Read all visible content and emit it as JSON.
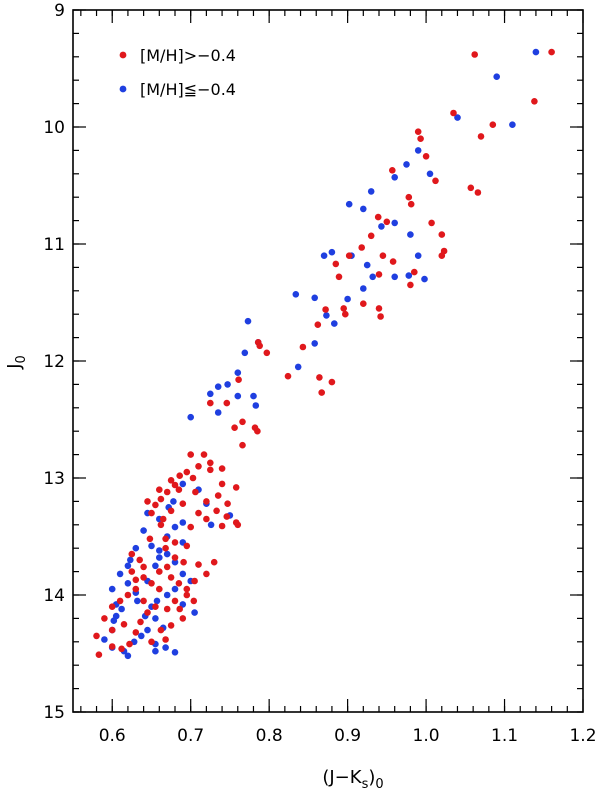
{
  "chart_data": {
    "type": "scatter",
    "xlabel_main": "(J−K",
    "xlabel_sub1": "s",
    "xlabel_close": ")",
    "xlabel_sub2": "0",
    "ylabel_main": "J",
    "ylabel_sub": "0",
    "xlim": [
      0.55,
      1.2
    ],
    "ylim": [
      15,
      9
    ],
    "xticks": [
      0.6,
      0.7,
      0.8,
      0.9,
      1.0,
      1.1,
      1.2
    ],
    "xtick_labels": [
      "0.6",
      "0.7",
      "0.8",
      "0.9",
      "1.0",
      "1.1",
      "1.2"
    ],
    "yticks": [
      9,
      10,
      11,
      12,
      13,
      14,
      15
    ],
    "ytick_labels": [
      "9",
      "10",
      "11",
      "12",
      "13",
      "14",
      "15"
    ],
    "x_minor_step": 0.02,
    "y_minor_step": 0.2,
    "grid": false,
    "legend_position": "top-left",
    "series": [
      {
        "name": "[M/H]>−0.4",
        "color": "#e0181c",
        "points": [
          [
            1.16,
            9.36
          ],
          [
            1.062,
            9.38
          ],
          [
            1.138,
            9.78
          ],
          [
            1.085,
            9.98
          ],
          [
            1.035,
            9.88
          ],
          [
            1.07,
            10.08
          ],
          [
            0.99,
            10.04
          ],
          [
            0.993,
            10.1
          ],
          [
            1.0,
            10.25
          ],
          [
            1.012,
            10.46
          ],
          [
            1.057,
            10.52
          ],
          [
            1.066,
            10.56
          ],
          [
            0.957,
            10.37
          ],
          [
            0.978,
            10.6
          ],
          [
            0.981,
            10.66
          ],
          [
            1.007,
            10.82
          ],
          [
            0.939,
            10.77
          ],
          [
            0.95,
            10.81
          ],
          [
            0.93,
            10.93
          ],
          [
            1.02,
            10.92
          ],
          [
            1.023,
            11.06
          ],
          [
            1.02,
            11.1
          ],
          [
            0.918,
            11.03
          ],
          [
            0.945,
            11.1
          ],
          [
            0.902,
            11.1
          ],
          [
            0.885,
            11.17
          ],
          [
            0.889,
            11.28
          ],
          [
            0.94,
            11.26
          ],
          [
            0.958,
            11.15
          ],
          [
            0.985,
            11.24
          ],
          [
            0.98,
            11.35
          ],
          [
            0.895,
            11.55
          ],
          [
            0.897,
            11.6
          ],
          [
            0.92,
            11.51
          ],
          [
            0.94,
            11.55
          ],
          [
            0.942,
            11.62
          ],
          [
            0.872,
            11.56
          ],
          [
            0.862,
            11.69
          ],
          [
            0.843,
            11.88
          ],
          [
            0.824,
            12.13
          ],
          [
            0.864,
            12.14
          ],
          [
            0.867,
            12.27
          ],
          [
            0.88,
            12.18
          ],
          [
            0.786,
            11.84
          ],
          [
            0.788,
            11.87
          ],
          [
            0.797,
            11.93
          ],
          [
            0.761,
            12.16
          ],
          [
            0.725,
            12.36
          ],
          [
            0.746,
            12.36
          ],
          [
            0.766,
            12.52
          ],
          [
            0.756,
            12.57
          ],
          [
            0.766,
            12.72
          ],
          [
            0.782,
            12.57
          ],
          [
            0.785,
            12.6
          ],
          [
            0.7,
            12.8
          ],
          [
            0.717,
            12.8
          ],
          [
            0.725,
            12.87
          ],
          [
            0.686,
            12.98
          ],
          [
            0.695,
            12.95
          ],
          [
            0.71,
            12.9
          ],
          [
            0.725,
            12.93
          ],
          [
            0.74,
            12.92
          ],
          [
            0.675,
            13.02
          ],
          [
            0.703,
            13.0
          ],
          [
            0.74,
            13.05
          ],
          [
            0.758,
            13.08
          ],
          [
            0.735,
            13.15
          ],
          [
            0.747,
            13.22
          ],
          [
            0.72,
            13.2
          ],
          [
            0.733,
            13.28
          ],
          [
            0.746,
            13.33
          ],
          [
            0.758,
            13.38
          ],
          [
            0.76,
            13.4
          ],
          [
            0.74,
            13.41
          ],
          [
            0.706,
            13.12
          ],
          [
            0.71,
            13.3
          ],
          [
            0.72,
            13.35
          ],
          [
            0.7,
            13.42
          ],
          [
            0.67,
            13.12
          ],
          [
            0.662,
            13.18
          ],
          [
            0.655,
            13.23
          ],
          [
            0.65,
            13.3
          ],
          [
            0.662,
            13.4
          ],
          [
            0.648,
            13.52
          ],
          [
            0.668,
            13.6
          ],
          [
            0.68,
            13.68
          ],
          [
            0.691,
            13.72
          ],
          [
            0.71,
            13.74
          ],
          [
            0.73,
            13.72
          ],
          [
            0.72,
            13.82
          ],
          [
            0.705,
            13.88
          ],
          [
            0.695,
            13.95
          ],
          [
            0.704,
            14.05
          ],
          [
            0.686,
            14.12
          ],
          [
            0.69,
            14.2
          ],
          [
            0.675,
            14.26
          ],
          [
            0.662,
            14.3
          ],
          [
            0.668,
            14.38
          ],
          [
            0.65,
            14.4
          ],
          [
            0.64,
            14.05
          ],
          [
            0.66,
            13.95
          ],
          [
            0.65,
            13.9
          ],
          [
            0.64,
            13.85
          ],
          [
            0.63,
            13.95
          ],
          [
            0.62,
            14.0
          ],
          [
            0.61,
            14.05
          ],
          [
            0.6,
            14.1
          ],
          [
            0.59,
            14.2
          ],
          [
            0.58,
            14.35
          ],
          [
            0.583,
            14.51
          ],
          [
            0.6,
            14.44
          ],
          [
            0.612,
            14.46
          ],
          [
            0.622,
            14.42
          ],
          [
            0.63,
            14.32
          ],
          [
            0.636,
            14.23
          ],
          [
            0.645,
            14.15
          ],
          [
            0.6,
            14.3
          ],
          [
            0.615,
            14.25
          ],
          [
            0.625,
            13.65
          ],
          [
            0.635,
            13.7
          ],
          [
            0.64,
            13.76
          ],
          [
            0.625,
            13.8
          ],
          [
            0.63,
            13.87
          ],
          [
            0.66,
            13.8
          ],
          [
            0.67,
            13.76
          ],
          [
            0.675,
            13.85
          ],
          [
            0.685,
            13.9
          ],
          [
            0.655,
            14.1
          ],
          [
            0.67,
            14.12
          ],
          [
            0.68,
            14.05
          ],
          [
            0.695,
            14.0
          ],
          [
            0.668,
            13.52
          ],
          [
            0.68,
            13.55
          ],
          [
            0.695,
            13.58
          ],
          [
            0.665,
            13.35
          ],
          [
            0.675,
            13.28
          ],
          [
            0.69,
            13.22
          ],
          [
            0.685,
            13.1
          ],
          [
            0.68,
            13.06
          ],
          [
            0.66,
            13.1
          ],
          [
            0.645,
            13.2
          ]
        ]
      },
      {
        "name": "[M/H]≦−0.4",
        "color": "#1f3fe0",
        "points": [
          [
            1.14,
            9.36
          ],
          [
            1.09,
            9.57
          ],
          [
            1.04,
            9.92
          ],
          [
            1.11,
            9.98
          ],
          [
            0.99,
            10.2
          ],
          [
            1.005,
            10.4
          ],
          [
            0.975,
            10.32
          ],
          [
            0.96,
            10.43
          ],
          [
            0.93,
            10.55
          ],
          [
            0.902,
            10.66
          ],
          [
            0.92,
            10.7
          ],
          [
            0.943,
            10.85
          ],
          [
            0.96,
            10.82
          ],
          [
            0.98,
            10.92
          ],
          [
            0.99,
            11.1
          ],
          [
            0.96,
            11.28
          ],
          [
            0.978,
            11.27
          ],
          [
            0.998,
            11.3
          ],
          [
            0.87,
            11.1
          ],
          [
            0.88,
            11.07
          ],
          [
            0.905,
            11.1
          ],
          [
            0.925,
            11.18
          ],
          [
            0.932,
            11.28
          ],
          [
            0.92,
            11.38
          ],
          [
            0.834,
            11.43
          ],
          [
            0.858,
            11.46
          ],
          [
            0.9,
            11.47
          ],
          [
            0.873,
            11.61
          ],
          [
            0.883,
            11.68
          ],
          [
            0.858,
            11.85
          ],
          [
            0.837,
            12.05
          ],
          [
            0.786,
            11.84
          ],
          [
            0.773,
            11.66
          ],
          [
            0.769,
            11.93
          ],
          [
            0.76,
            12.1
          ],
          [
            0.747,
            12.2
          ],
          [
            0.735,
            12.22
          ],
          [
            0.725,
            12.28
          ],
          [
            0.76,
            12.3
          ],
          [
            0.78,
            12.3
          ],
          [
            0.783,
            12.38
          ],
          [
            0.735,
            12.44
          ],
          [
            0.7,
            12.48
          ],
          [
            0.66,
            13.35
          ],
          [
            0.67,
            13.5
          ],
          [
            0.65,
            13.58
          ],
          [
            0.66,
            13.62
          ],
          [
            0.67,
            13.65
          ],
          [
            0.69,
            13.55
          ],
          [
            0.68,
            13.42
          ],
          [
            0.69,
            13.38
          ],
          [
            0.672,
            13.25
          ],
          [
            0.678,
            13.2
          ],
          [
            0.69,
            13.05
          ],
          [
            0.71,
            13.1
          ],
          [
            0.72,
            13.22
          ],
          [
            0.75,
            13.32
          ],
          [
            0.726,
            13.4
          ],
          [
            0.645,
            13.3
          ],
          [
            0.64,
            13.45
          ],
          [
            0.63,
            13.6
          ],
          [
            0.623,
            13.7
          ],
          [
            0.62,
            13.75
          ],
          [
            0.61,
            13.82
          ],
          [
            0.6,
            13.95
          ],
          [
            0.605,
            14.08
          ],
          [
            0.612,
            14.12
          ],
          [
            0.605,
            14.18
          ],
          [
            0.602,
            14.22
          ],
          [
            0.6,
            14.3
          ],
          [
            0.59,
            14.38
          ],
          [
            0.6,
            14.45
          ],
          [
            0.615,
            14.48
          ],
          [
            0.62,
            14.52
          ],
          [
            0.628,
            14.4
          ],
          [
            0.637,
            14.35
          ],
          [
            0.645,
            14.3
          ],
          [
            0.655,
            14.42
          ],
          [
            0.655,
            14.48
          ],
          [
            0.668,
            14.45
          ],
          [
            0.68,
            14.49
          ],
          [
            0.665,
            14.28
          ],
          [
            0.655,
            14.2
          ],
          [
            0.642,
            14.18
          ],
          [
            0.632,
            14.05
          ],
          [
            0.63,
            13.98
          ],
          [
            0.62,
            13.9
          ],
          [
            0.645,
            13.88
          ],
          [
            0.655,
            13.75
          ],
          [
            0.66,
            13.68
          ],
          [
            0.68,
            13.72
          ],
          [
            0.69,
            13.82
          ],
          [
            0.7,
            13.88
          ],
          [
            0.68,
            13.95
          ],
          [
            0.69,
            14.08
          ],
          [
            0.705,
            14.15
          ],
          [
            0.67,
            14.0
          ],
          [
            0.657,
            14.05
          ],
          [
            0.65,
            14.1
          ]
        ]
      }
    ]
  }
}
